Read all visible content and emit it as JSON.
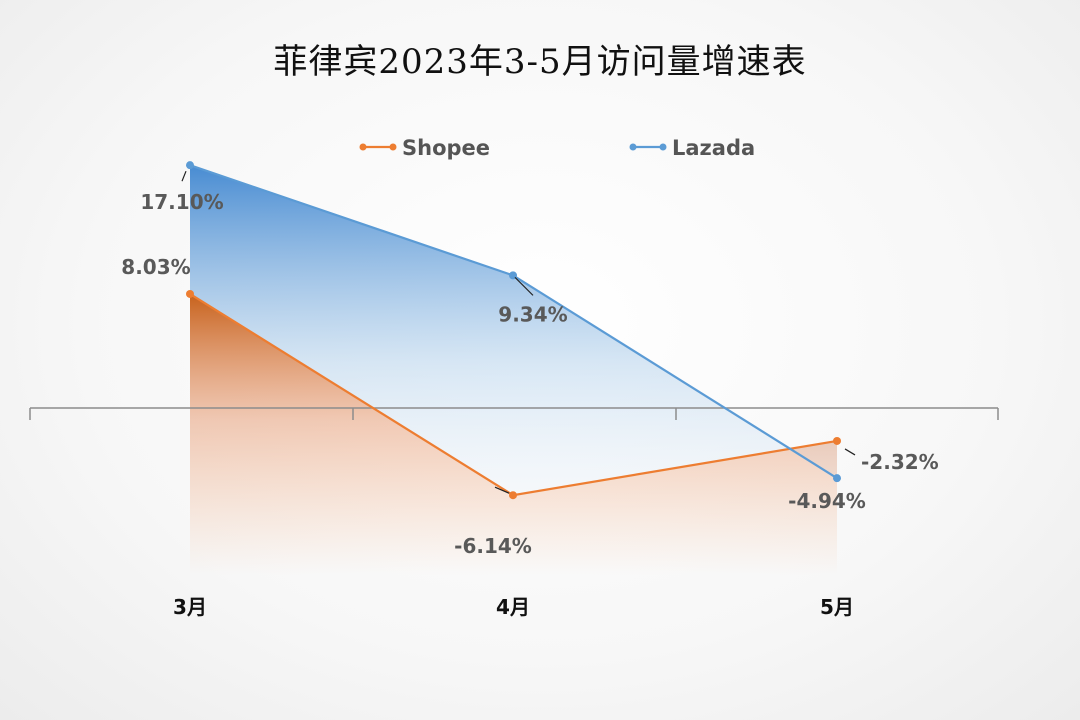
{
  "chart_data": {
    "type": "area",
    "title": "菲律宾2023年3-5月访问量增速表",
    "categories": [
      "3月",
      "4月",
      "5月"
    ],
    "series": [
      {
        "name": "Shopee",
        "values": [
          8.03,
          -6.14,
          -2.32
        ],
        "labels": [
          "8.03%",
          "-6.14%",
          "-2.32%"
        ],
        "color": "#ED7D31"
      },
      {
        "name": "Lazada",
        "values": [
          17.1,
          9.34,
          -4.94
        ],
        "labels": [
          "17.10%",
          "9.34%",
          "-4.94%"
        ],
        "color": "#5B9BD5"
      }
    ],
    "ylim": [
      -16,
      22
    ],
    "unit": "%",
    "legend_position": "top",
    "grid": false
  }
}
